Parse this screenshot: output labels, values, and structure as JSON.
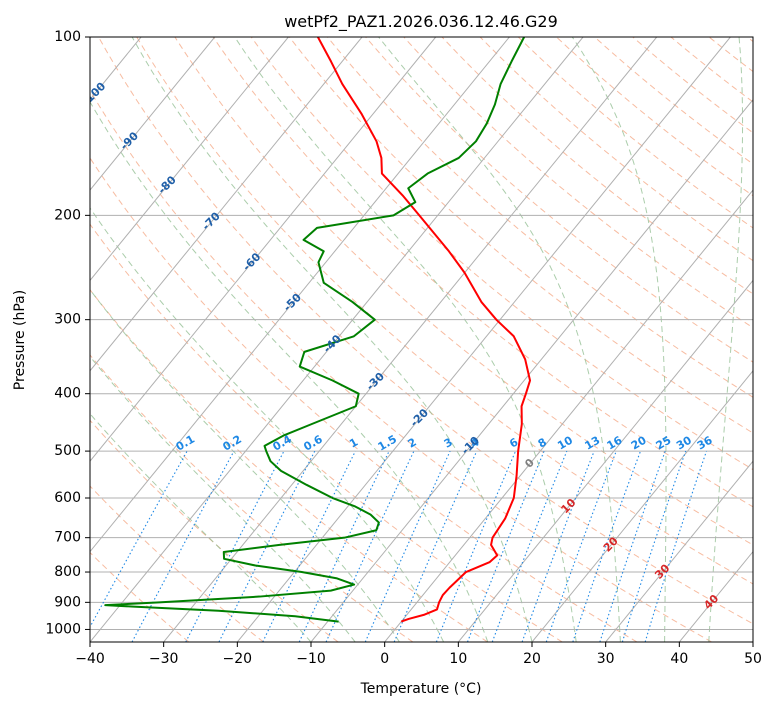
{
  "chart_data": {
    "type": "line",
    "title": "wetPf2_PAZ1.2026.036.12.46.G29",
    "xlabel": "Temperature (°C)",
    "ylabel": "Pressure (hPa)",
    "xlim": [
      -40,
      50
    ],
    "ylim": [
      1050,
      100
    ],
    "y_scale": "log",
    "grid": true,
    "x_ticks": [
      "−40",
      "−30",
      "−20",
      "−10",
      "0",
      "10",
      "20",
      "30",
      "40",
      "50"
    ],
    "y_ticks": [
      {
        "value": 100,
        "label": "100"
      },
      {
        "value": 200,
        "label": "200"
      },
      {
        "value": 300,
        "label": "300"
      },
      {
        "value": 400,
        "label": "400"
      },
      {
        "value": 500,
        "label": "500"
      },
      {
        "value": 600,
        "label": "600"
      },
      {
        "value": 700,
        "label": "700"
      },
      {
        "value": 800,
        "label": "800"
      },
      {
        "value": 900,
        "label": "900"
      },
      {
        "value": 1000,
        "label": "1000"
      }
    ],
    "colors": {
      "temperature": "#ff0000",
      "dewpoint": "#008000",
      "dry_adiabat": "#f4a582",
      "moist_adiabat": "#8fbc8f",
      "mixing_ratio": "#1e88e5",
      "isotherm_label": "#1f5fa8",
      "grid": "#b0b0b0"
    },
    "series": [
      {
        "name": "",
        "role": "temperature",
        "points": [
          {
            "p": 970,
            "t": 0.0
          },
          {
            "p": 960,
            "t": 0.7
          },
          {
            "p": 945,
            "t": 2.3
          },
          {
            "p": 925,
            "t": 3.5
          },
          {
            "p": 900,
            "t": 3.0
          },
          {
            "p": 875,
            "t": 2.7
          },
          {
            "p": 850,
            "t": 2.8
          },
          {
            "p": 830,
            "t": 3.0
          },
          {
            "p": 800,
            "t": 3.3
          },
          {
            "p": 770,
            "t": 5.4
          },
          {
            "p": 750,
            "t": 5.7
          },
          {
            "p": 720,
            "t": 3.7
          },
          {
            "p": 700,
            "t": 3.1
          },
          {
            "p": 650,
            "t": 2.7
          },
          {
            "p": 600,
            "t": 1.6
          },
          {
            "p": 550,
            "t": -0.5
          },
          {
            "p": 500,
            "t": -3.0
          },
          {
            "p": 450,
            "t": -5.5
          },
          {
            "p": 420,
            "t": -7.5
          },
          {
            "p": 400,
            "t": -8.3
          },
          {
            "p": 380,
            "t": -9.2
          },
          {
            "p": 350,
            "t": -12.2
          },
          {
            "p": 320,
            "t": -16.3
          },
          {
            "p": 300,
            "t": -20.5
          },
          {
            "p": 280,
            "t": -24.5
          },
          {
            "p": 250,
            "t": -30.0
          },
          {
            "p": 230,
            "t": -34.5
          },
          {
            "p": 200,
            "t": -42.5
          },
          {
            "p": 185,
            "t": -47.0
          },
          {
            "p": 170,
            "t": -52.2
          },
          {
            "p": 160,
            "t": -54.0
          },
          {
            "p": 150,
            "t": -56.5
          },
          {
            "p": 135,
            "t": -61.5
          },
          {
            "p": 120,
            "t": -67.5
          },
          {
            "p": 110,
            "t": -71.5
          },
          {
            "p": 100,
            "t": -76.0
          }
        ]
      },
      {
        "name": "",
        "role": "dewpoint",
        "points": [
          {
            "p": 970,
            "t": -8.5
          },
          {
            "p": 950,
            "t": -15.0
          },
          {
            "p": 930,
            "t": -26.0
          },
          {
            "p": 915,
            "t": -38.0
          },
          {
            "p": 910,
            "t": -42.0
          },
          {
            "p": 900,
            "t": -35.0
          },
          {
            "p": 880,
            "t": -22.0
          },
          {
            "p": 860,
            "t": -13.0
          },
          {
            "p": 840,
            "t": -10.5
          },
          {
            "p": 820,
            "t": -13.5
          },
          {
            "p": 800,
            "t": -19.0
          },
          {
            "p": 780,
            "t": -26.0
          },
          {
            "p": 760,
            "t": -31.0
          },
          {
            "p": 740,
            "t": -31.8
          },
          {
            "p": 720,
            "t": -25.0
          },
          {
            "p": 700,
            "t": -17.0
          },
          {
            "p": 680,
            "t": -13.5
          },
          {
            "p": 660,
            "t": -14.0
          },
          {
            "p": 640,
            "t": -16.0
          },
          {
            "p": 620,
            "t": -19.0
          },
          {
            "p": 600,
            "t": -23.0
          },
          {
            "p": 570,
            "t": -28.0
          },
          {
            "p": 540,
            "t": -33.0
          },
          {
            "p": 520,
            "t": -35.5
          },
          {
            "p": 500,
            "t": -37.2
          },
          {
            "p": 490,
            "t": -38.0
          },
          {
            "p": 470,
            "t": -36.5
          },
          {
            "p": 450,
            "t": -34.0
          },
          {
            "p": 420,
            "t": -30.0
          },
          {
            "p": 400,
            "t": -31.0
          },
          {
            "p": 380,
            "t": -36.0
          },
          {
            "p": 360,
            "t": -42.0
          },
          {
            "p": 340,
            "t": -43.0
          },
          {
            "p": 320,
            "t": -38.0
          },
          {
            "p": 300,
            "t": -37.0
          },
          {
            "p": 280,
            "t": -42.0
          },
          {
            "p": 260,
            "t": -48.0
          },
          {
            "p": 240,
            "t": -51.0
          },
          {
            "p": 230,
            "t": -51.5
          },
          {
            "p": 220,
            "t": -55.5
          },
          {
            "p": 210,
            "t": -55.0
          },
          {
            "p": 200,
            "t": -46.0
          },
          {
            "p": 190,
            "t": -44.5
          },
          {
            "p": 180,
            "t": -47.0
          },
          {
            "p": 170,
            "t": -46.0
          },
          {
            "p": 160,
            "t": -43.5
          },
          {
            "p": 150,
            "t": -43.0
          },
          {
            "p": 140,
            "t": -43.5
          },
          {
            "p": 130,
            "t": -44.5
          },
          {
            "p": 120,
            "t": -46.0
          },
          {
            "p": 110,
            "t": -47.0
          },
          {
            "p": 100,
            "t": -48.0
          }
        ]
      }
    ],
    "isotherm_labels": [
      {
        "t": -100,
        "text": "-100"
      },
      {
        "t": -90,
        "text": "-90"
      },
      {
        "t": -80,
        "text": "-80"
      },
      {
        "t": -70,
        "text": "-70"
      },
      {
        "t": -60,
        "text": "-60"
      },
      {
        "t": -50,
        "text": "-50"
      },
      {
        "t": -40,
        "text": "-40"
      },
      {
        "t": -30,
        "text": "-30"
      },
      {
        "t": -20,
        "text": "-20"
      },
      {
        "t": -10,
        "text": "-10"
      }
    ],
    "mixing_ratio_labels": [
      "0.1",
      "0.2",
      "0.4",
      "0.6",
      "1",
      "1.5",
      "2",
      "3",
      "4",
      "6",
      "8",
      "10",
      "13",
      "16",
      "20",
      "25",
      "30",
      "36"
    ],
    "mixing_ratio_values": [
      0.1,
      0.2,
      0.4,
      0.6,
      1,
      1.5,
      2,
      3,
      4,
      6,
      8,
      10,
      13,
      16,
      20,
      25,
      30,
      36
    ],
    "wet_bulb_labels": [
      {
        "value": 0,
        "text": "0",
        "color": "#808080"
      },
      {
        "value": 10,
        "text": "10",
        "color": "#d62728"
      },
      {
        "value": 20,
        "text": "20",
        "color": "#d62728"
      },
      {
        "value": 30,
        "text": "30",
        "color": "#d62728"
      },
      {
        "value": 40,
        "text": "40",
        "color": "#d62728"
      }
    ]
  }
}
